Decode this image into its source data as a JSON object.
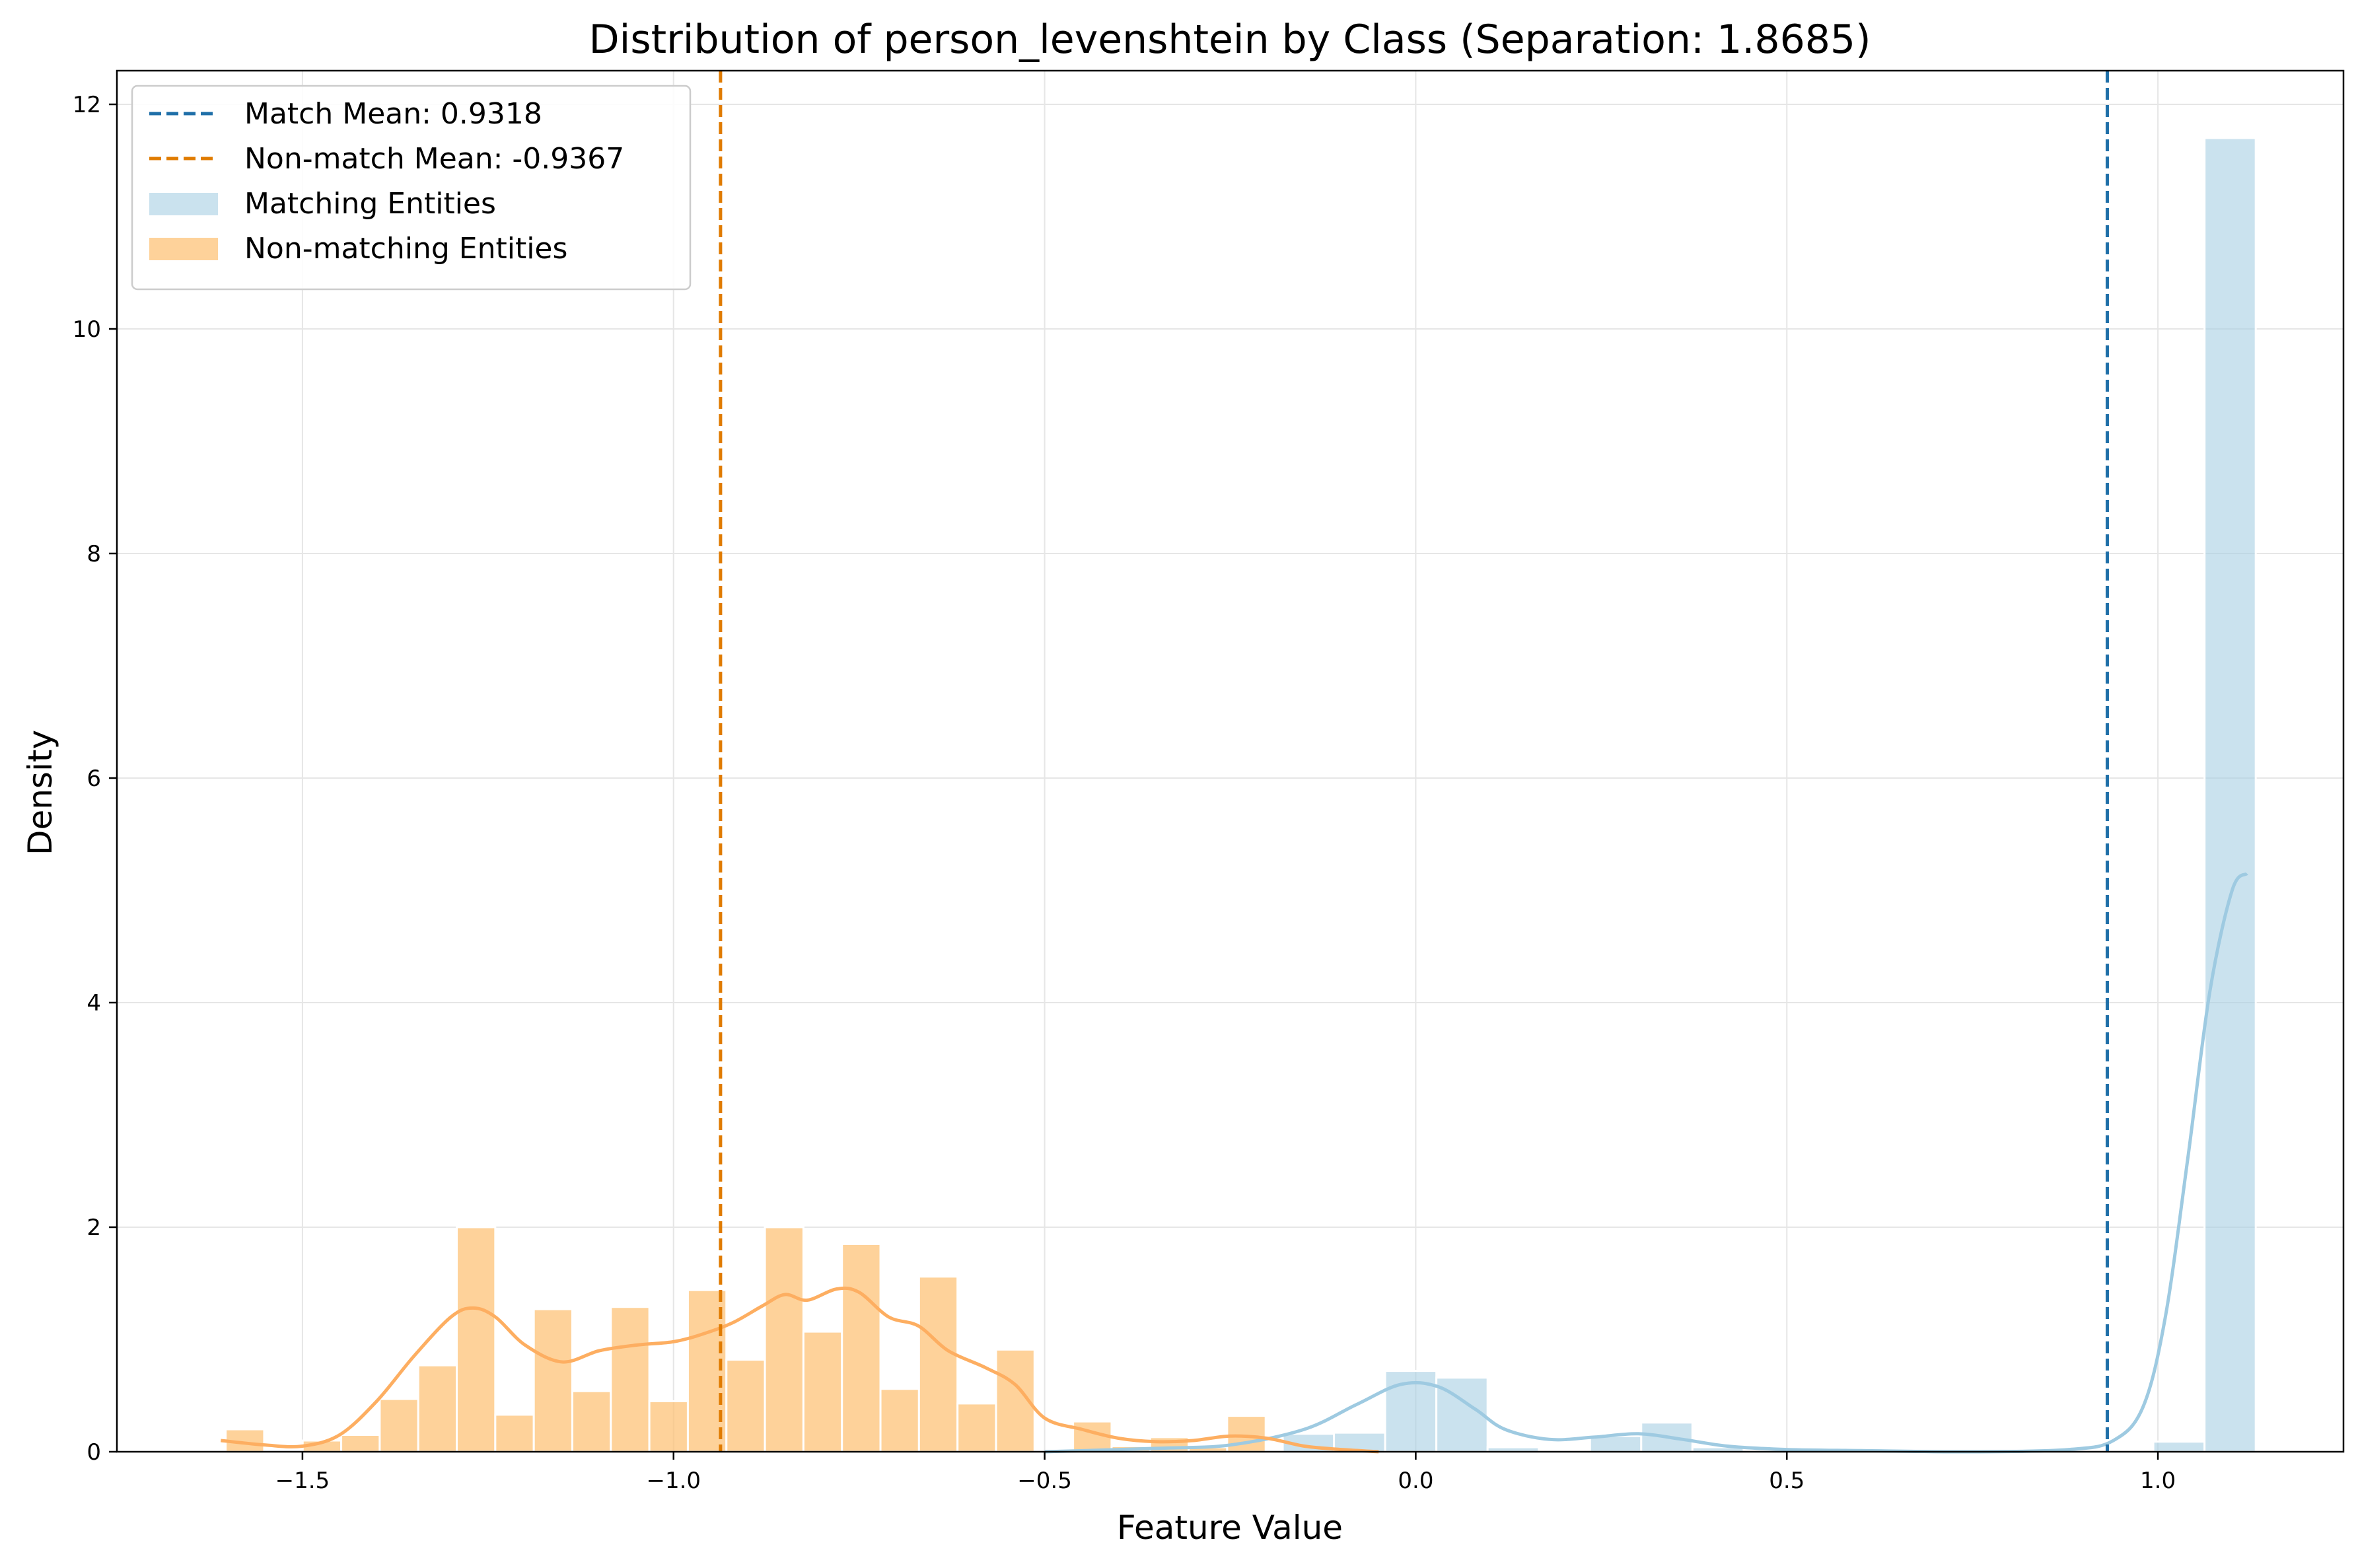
{
  "chart_data": {
    "type": "histogram",
    "title": "Distribution of person_levenshtein by Class (Separation: 1.8685)",
    "xlabel": "Feature Value",
    "ylabel": "Density",
    "xlim": [
      -1.75,
      1.25
    ],
    "ylim": [
      0,
      12.3
    ],
    "xticks": [
      -1.5,
      -1.0,
      -0.5,
      0.0,
      0.5,
      1.0
    ],
    "xtick_labels": [
      "−1.5",
      "−1.0",
      "−0.5",
      "0.0",
      "0.5",
      "1.0"
    ],
    "yticks": [
      0,
      2,
      4,
      6,
      8,
      10,
      12
    ],
    "ytick_labels": [
      "0",
      "2",
      "4",
      "6",
      "8",
      "10",
      "12"
    ],
    "grid": true,
    "legend_position": "top-left",
    "colors": {
      "match_bar": "#a6cee3",
      "match_line": "#1f77b4",
      "nonmatch_bar": "#fdbf6f",
      "nonmatch_line": "#ff7f0e"
    },
    "legend": [
      {
        "label": "Match Mean: 0.9318",
        "kind": "dashed",
        "color": "#1f77b4"
      },
      {
        "label": "Non-match Mean: -0.9367",
        "kind": "dashed",
        "color": "#ff7f0e"
      },
      {
        "label": "Matching Entities",
        "kind": "patch",
        "color": "#a6cee3"
      },
      {
        "label": "Non-matching Entities",
        "kind": "patch",
        "color": "#fdbf6f"
      }
    ],
    "mean_lines": [
      {
        "x": 0.9318,
        "color": "#1f77b4"
      },
      {
        "x": -0.9367,
        "color": "#ff7f0e"
      }
    ],
    "series": [
      {
        "name": "Matching Entities",
        "bin_width": 0.069,
        "bins": [
          {
            "x0": -0.1792,
            "x1": -0.1102,
            "density": 0.16
          },
          {
            "x0": -0.1102,
            "x1": -0.0412,
            "density": 0.17
          },
          {
            "x0": -0.0412,
            "x1": 0.0278,
            "density": 0.72
          },
          {
            "x0": 0.0278,
            "x1": 0.0968,
            "density": 0.66
          },
          {
            "x0": 0.0968,
            "x1": 0.1658,
            "density": 0.04
          },
          {
            "x0": 0.2348,
            "x1": 0.3038,
            "density": 0.14
          },
          {
            "x0": 0.3038,
            "x1": 0.3728,
            "density": 0.26
          },
          {
            "x0": 0.3728,
            "x1": 0.4418,
            "density": 0.04
          },
          {
            "x0": 0.9938,
            "x1": 1.0628,
            "density": 0.09
          },
          {
            "x0": 1.0628,
            "x1": 1.1318,
            "density": 11.7
          }
        ],
        "kde": [
          [
            -0.5,
            0.0
          ],
          [
            -0.35,
            0.03
          ],
          [
            -0.25,
            0.06
          ],
          [
            -0.15,
            0.2
          ],
          [
            -0.08,
            0.42
          ],
          [
            -0.02,
            0.6
          ],
          [
            0.03,
            0.58
          ],
          [
            0.08,
            0.38
          ],
          [
            0.12,
            0.2
          ],
          [
            0.18,
            0.11
          ],
          [
            0.24,
            0.13
          ],
          [
            0.3,
            0.16
          ],
          [
            0.36,
            0.11
          ],
          [
            0.42,
            0.05
          ],
          [
            0.5,
            0.02
          ],
          [
            0.6,
            0.01
          ],
          [
            0.75,
            0.0
          ],
          [
            0.88,
            0.02
          ],
          [
            0.94,
            0.1
          ],
          [
            0.98,
            0.4
          ],
          [
            1.01,
            1.2
          ],
          [
            1.04,
            2.6
          ],
          [
            1.07,
            4.1
          ],
          [
            1.1,
            5.0
          ],
          [
            1.12,
            5.15
          ]
        ]
      },
      {
        "name": "Non-matching Entities",
        "bin_width": 0.0519,
        "bins": [
          {
            "x0": -1.6035,
            "x1": -1.5516,
            "density": 0.2
          },
          {
            "x0": -1.5516,
            "x1": -1.4997,
            "density": 0.0
          },
          {
            "x0": -1.4997,
            "x1": -1.4478,
            "density": 0.1
          },
          {
            "x0": -1.4478,
            "x1": -1.3959,
            "density": 0.15
          },
          {
            "x0": -1.3959,
            "x1": -1.344,
            "density": 0.47
          },
          {
            "x0": -1.344,
            "x1": -1.2921,
            "density": 0.77
          },
          {
            "x0": -1.2921,
            "x1": -1.2402,
            "density": 2.0
          },
          {
            "x0": -1.2402,
            "x1": -1.1883,
            "density": 0.33
          },
          {
            "x0": -1.1883,
            "x1": -1.1364,
            "density": 1.27
          },
          {
            "x0": -1.1364,
            "x1": -1.0845,
            "density": 0.54
          },
          {
            "x0": -1.0845,
            "x1": -1.0326,
            "density": 1.29
          },
          {
            "x0": -1.0326,
            "x1": -0.9807,
            "density": 0.45
          },
          {
            "x0": -0.9807,
            "x1": -0.9288,
            "density": 1.44
          },
          {
            "x0": -0.9288,
            "x1": -0.8769,
            "density": 0.82
          },
          {
            "x0": -0.8769,
            "x1": -0.825,
            "density": 2.0
          },
          {
            "x0": -0.825,
            "x1": -0.7731,
            "density": 1.07
          },
          {
            "x0": -0.7731,
            "x1": -0.7212,
            "density": 1.85
          },
          {
            "x0": -0.7212,
            "x1": -0.6693,
            "density": 0.56
          },
          {
            "x0": -0.6693,
            "x1": -0.6174,
            "density": 1.56
          },
          {
            "x0": -0.6174,
            "x1": -0.5655,
            "density": 0.43
          },
          {
            "x0": -0.5655,
            "x1": -0.5136,
            "density": 0.91
          },
          {
            "x0": -0.5136,
            "x1": -0.4617,
            "density": 0.0
          },
          {
            "x0": -0.4617,
            "x1": -0.4098,
            "density": 0.27
          },
          {
            "x0": -0.4098,
            "x1": -0.3579,
            "density": 0.05
          },
          {
            "x0": -0.3579,
            "x1": -0.306,
            "density": 0.13
          },
          {
            "x0": -0.306,
            "x1": -0.2541,
            "density": 0.04
          },
          {
            "x0": -0.2541,
            "x1": -0.2022,
            "density": 0.32
          }
        ],
        "kde": [
          [
            -1.61,
            0.1
          ],
          [
            -1.55,
            0.06
          ],
          [
            -1.5,
            0.05
          ],
          [
            -1.45,
            0.15
          ],
          [
            -1.4,
            0.45
          ],
          [
            -1.35,
            0.85
          ],
          [
            -1.3,
            1.2
          ],
          [
            -1.27,
            1.28
          ],
          [
            -1.24,
            1.2
          ],
          [
            -1.2,
            0.95
          ],
          [
            -1.15,
            0.8
          ],
          [
            -1.1,
            0.9
          ],
          [
            -1.05,
            0.95
          ],
          [
            -1.0,
            0.98
          ],
          [
            -0.96,
            1.05
          ],
          [
            -0.92,
            1.15
          ],
          [
            -0.88,
            1.3
          ],
          [
            -0.85,
            1.4
          ],
          [
            -0.82,
            1.35
          ],
          [
            -0.78,
            1.45
          ],
          [
            -0.75,
            1.42
          ],
          [
            -0.71,
            1.2
          ],
          [
            -0.67,
            1.12
          ],
          [
            -0.63,
            0.9
          ],
          [
            -0.58,
            0.75
          ],
          [
            -0.54,
            0.6
          ],
          [
            -0.5,
            0.3
          ],
          [
            -0.45,
            0.2
          ],
          [
            -0.4,
            0.12
          ],
          [
            -0.35,
            0.09
          ],
          [
            -0.3,
            0.1
          ],
          [
            -0.25,
            0.14
          ],
          [
            -0.2,
            0.12
          ],
          [
            -0.15,
            0.05
          ],
          [
            -0.1,
            0.02
          ],
          [
            -0.05,
            0.0
          ]
        ]
      }
    ]
  }
}
